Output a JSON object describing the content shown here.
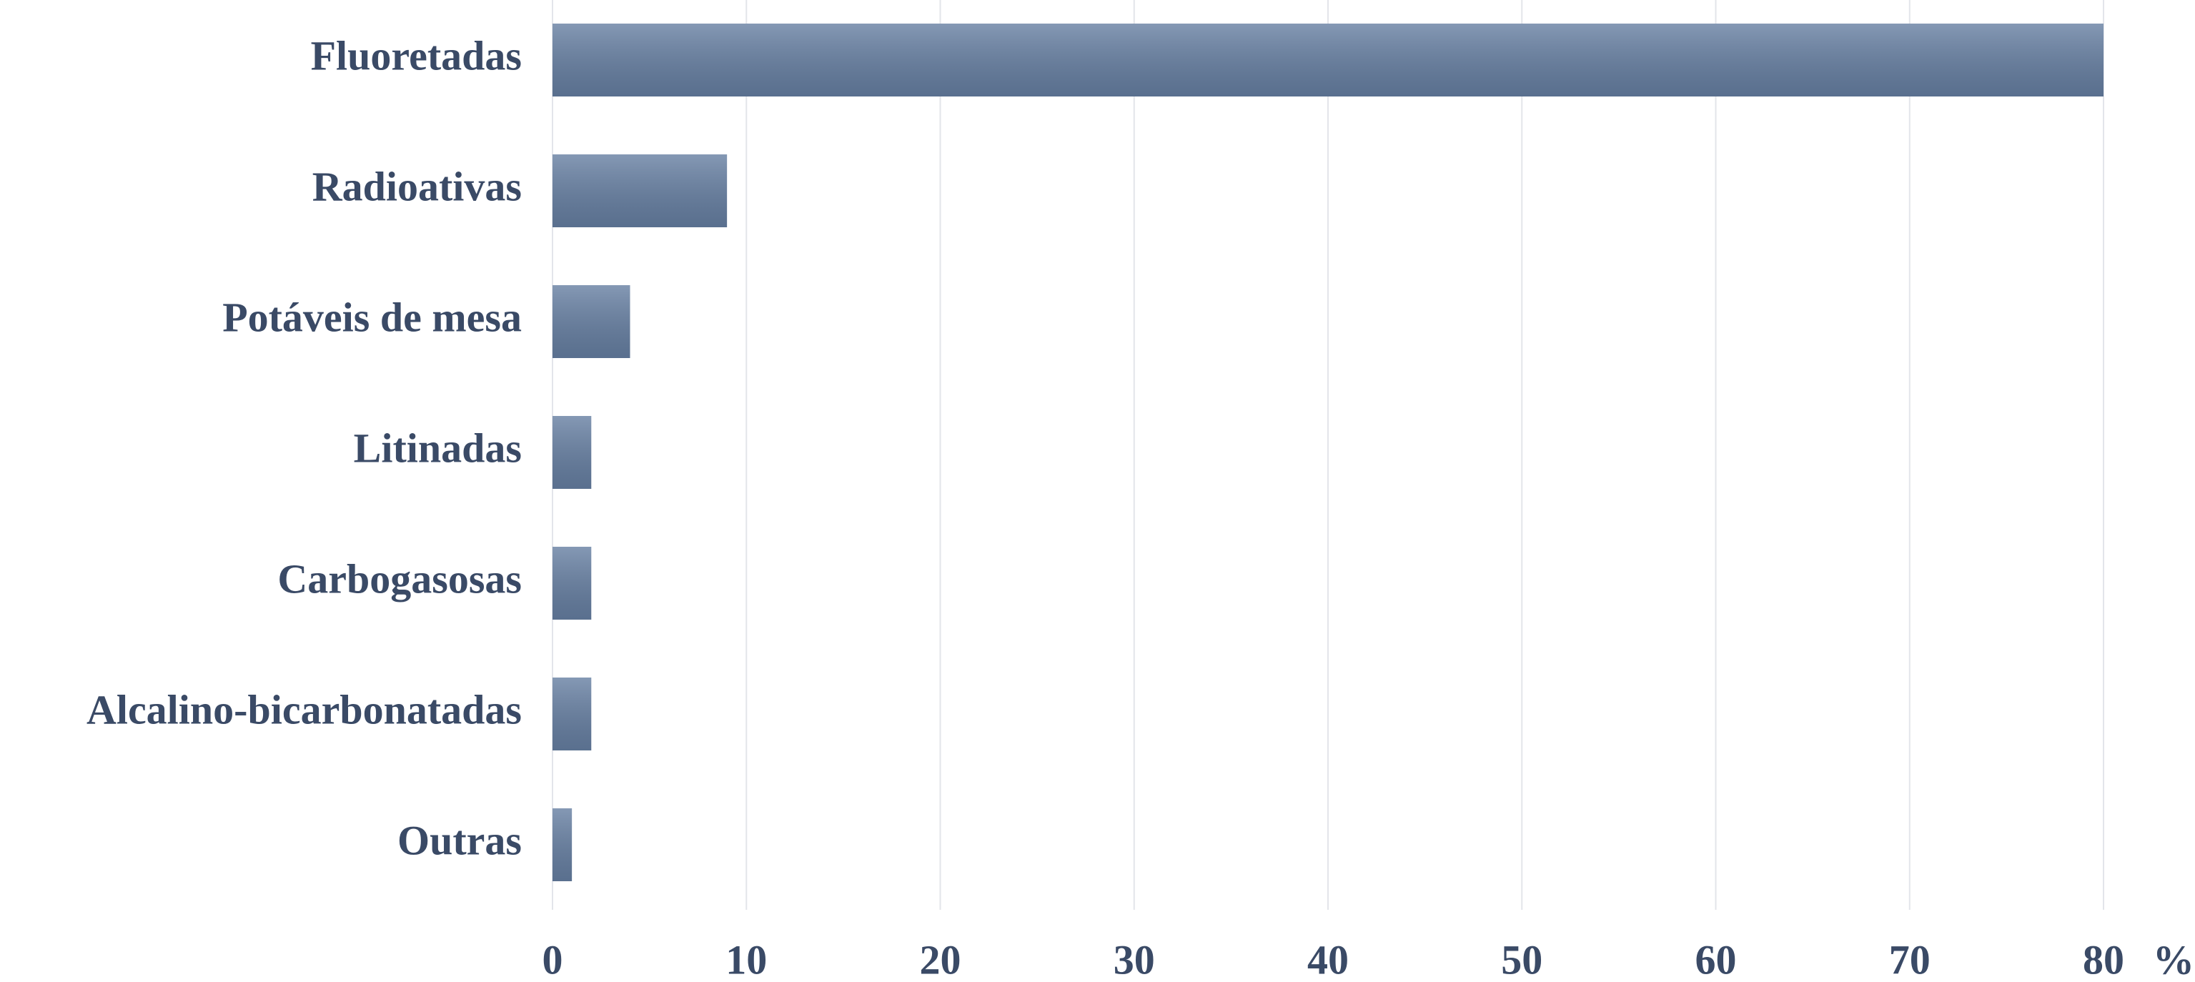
{
  "chart_data": {
    "type": "barh",
    "xlabel": "%",
    "categories": [
      "Fluoretadas",
      "Radioativas",
      "Potáveis de mesa",
      "Litinadas",
      "Carbogasosas",
      "Alcalino-bicarbonatadas",
      "Outras"
    ],
    "values": [
      80,
      9,
      4,
      2,
      2,
      2,
      1
    ],
    "color": "#667fa2",
    "xlim": [
      0,
      80
    ],
    "xticks": [
      0,
      10,
      20,
      30,
      40,
      50,
      60,
      70,
      80
    ],
    "grid": true
  }
}
